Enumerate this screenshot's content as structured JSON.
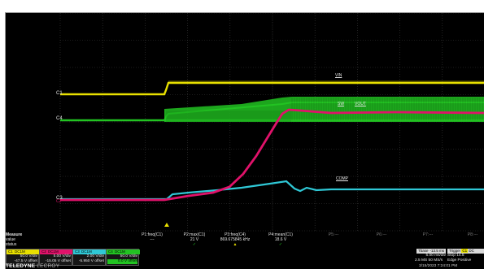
{
  "grid": {
    "divisions_x": 10,
    "divisions_y": 8
  },
  "traces": [
    {
      "name": "VIN",
      "label": "VIN",
      "color": "#e8e000"
    },
    {
      "name": "SW",
      "label": "SW",
      "color": "#22c322"
    },
    {
      "name": "VOUT",
      "label": "VOUT",
      "color": "#e0126a"
    },
    {
      "name": "COMP",
      "label": "COMP",
      "color": "#2fc8d6"
    }
  ],
  "ground_markers": [
    "C1",
    "C4",
    "C3",
    "C2"
  ],
  "measure": {
    "row_labels": [
      "Measure",
      "value",
      "status"
    ],
    "columns": [
      {
        "name": "P1:freq(C1)",
        "value": "---",
        "status": "",
        "status_color": "#e6e6e6"
      },
      {
        "name": "P2:max(C1)",
        "value": "21 V",
        "status": "✓",
        "status_color": "#22c322"
      },
      {
        "name": "P3:freq(C4)",
        "value": "869.675845 kHz",
        "status": "▲",
        "status_color": "#e8e000"
      },
      {
        "name": "P4:mean(C1)",
        "value": "18.6 V",
        "status": "✓",
        "status_color": "#22c322"
      },
      {
        "name": "P5:---",
        "value": "",
        "status": "",
        "status_color": "#e6e6e6"
      },
      {
        "name": "P6:---",
        "value": "",
        "status": "",
        "status_color": "#e6e6e6"
      },
      {
        "name": "P7:---",
        "value": "",
        "status": "",
        "status_color": "#e6e6e6"
      },
      {
        "name": "P8:---",
        "value": "",
        "status": "",
        "status_color": "#e6e6e6"
      }
    ]
  },
  "channels": [
    {
      "tag": "C1",
      "tag_color": "#e8e000",
      "header": "DC1M",
      "line1": "50.0 V/div",
      "line2": "-47.5 V offset"
    },
    {
      "tag": "C2",
      "tag_color": "#e0126a",
      "header": "DC1M",
      "line1": "5.00 V/div",
      "line2": "-15.05 V offset"
    },
    {
      "tag": "C3",
      "tag_color": "#2fc8d6",
      "header": "DC1M",
      "line1": "2.00 V/div",
      "line2": "-5.950 V offset"
    },
    {
      "tag": "C4",
      "tag_color": "#22c322",
      "header": "DC1M",
      "line1": "50.0 V/div",
      "line2": "0.0 V offset"
    }
  ],
  "brand": {
    "name": "TELEDYNE",
    "sub": "LECROY"
  },
  "timebase": {
    "label": "Tbase",
    "value": "-13.5 ms",
    "line1": "5.00 ms/div",
    "line2": "2.5 MS   50 MS/s"
  },
  "trigger": {
    "label": "Trigger",
    "tag": "C1",
    "tag2": "DC",
    "line1": "Stop   14.5",
    "line2": "Edge   Positive"
  },
  "datetime": "3/15/2023 7:24:01 PM"
}
